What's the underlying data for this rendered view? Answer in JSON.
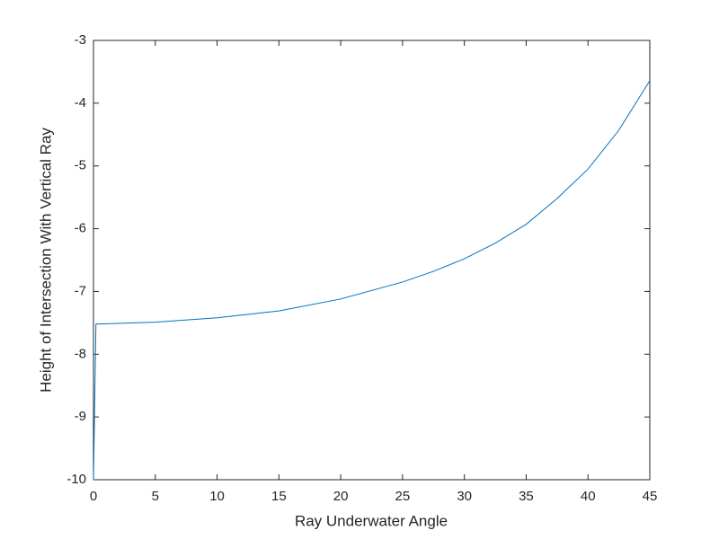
{
  "chart_data": {
    "type": "line",
    "x_label": "Ray Underwater Angle",
    "y_label": "Height of Intersection With Vertical Ray",
    "x": [
      0,
      0.2,
      5,
      10,
      15,
      20,
      25,
      27.5,
      30,
      32.5,
      35,
      37.5,
      40,
      42.5,
      45
    ],
    "series": [
      {
        "color": "#0072bd",
        "values": [
          -10,
          -7.52,
          -7.49,
          -7.42,
          -7.31,
          -7.12,
          -6.85,
          -6.68,
          -6.48,
          -6.23,
          -5.93,
          -5.52,
          -5.05,
          -4.43,
          -3.64
        ]
      }
    ],
    "xlim": [
      0,
      45
    ],
    "xticks": [
      0,
      5,
      10,
      15,
      20,
      25,
      30,
      35,
      40,
      45
    ],
    "ylim": [
      -10,
      -3
    ],
    "yticks": [
      -10,
      -9,
      -8,
      -7,
      -6,
      -5,
      -4,
      -3
    ]
  }
}
